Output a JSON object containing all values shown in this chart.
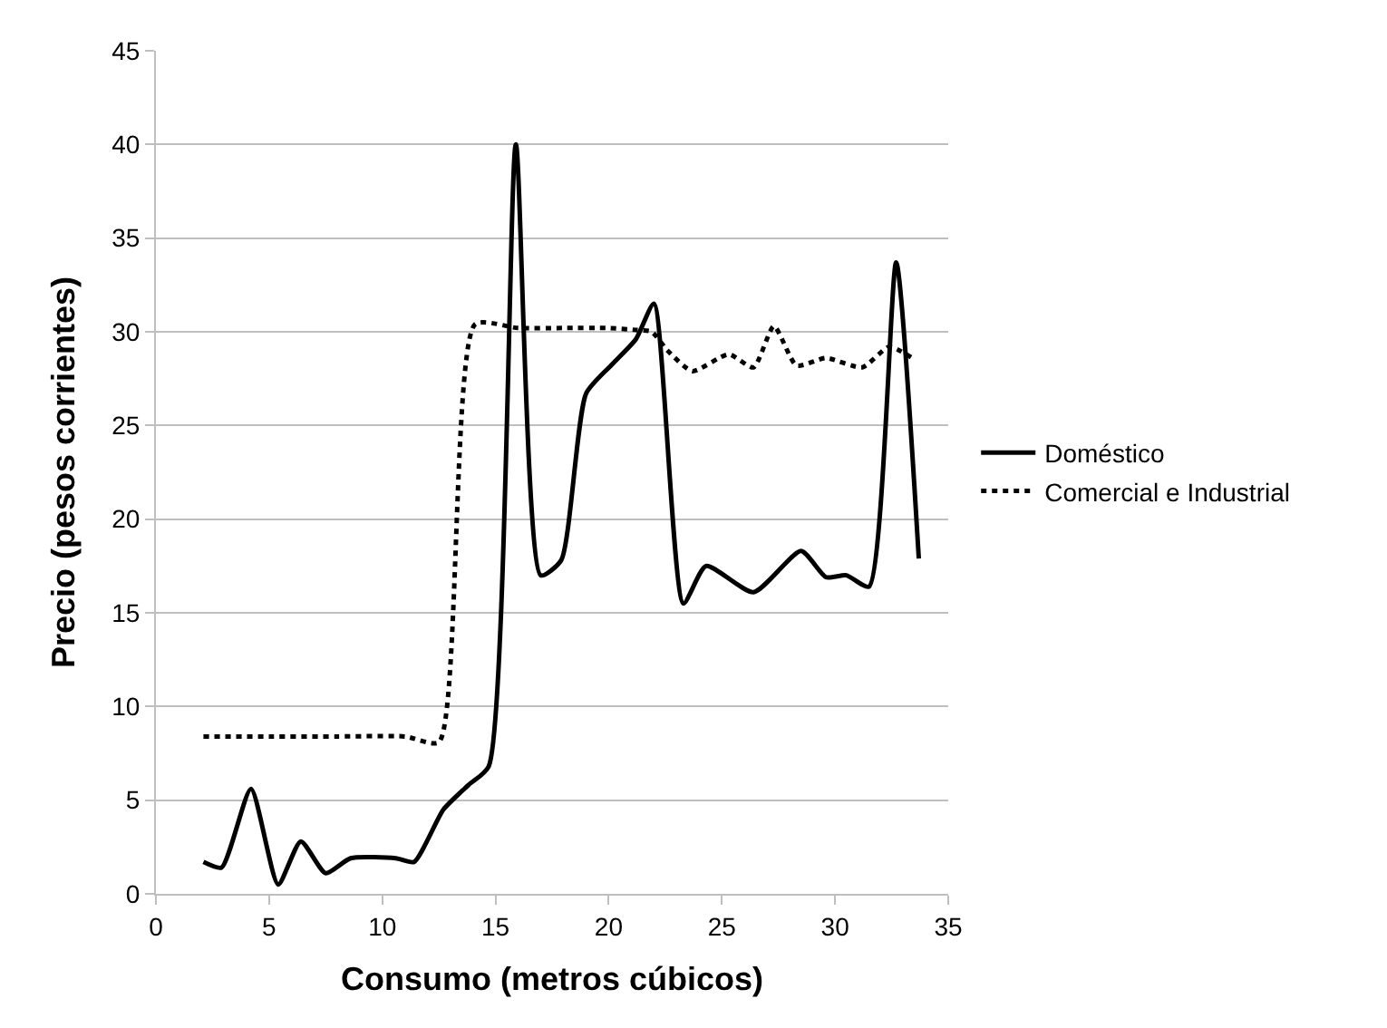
{
  "chart_data": {
    "type": "line",
    "xlabel": "Consumo (metros cúbicos)",
    "ylabel": "Precio (pesos corrientes)",
    "xlim": [
      0,
      35
    ],
    "xticks": [
      0,
      5,
      10,
      15,
      20,
      25,
      30,
      35
    ],
    "ylim": [
      0,
      45
    ],
    "yticks": [
      0,
      5,
      10,
      15,
      20,
      25,
      30,
      35,
      40,
      45
    ],
    "grid": "y",
    "legend": "right",
    "marker": "none",
    "series": [
      {
        "name": "Doméstico",
        "color": "#000000",
        "line_style": "solid",
        "x": [
          2.1,
          2.9,
          4.2,
          5.4,
          6.4,
          7.5,
          8.6,
          10.6,
          11.4,
          12.7,
          13.8,
          14.7,
          15.9,
          17.0,
          17.9,
          19.0,
          20.1,
          21.2,
          22.0,
          23.3,
          24.3,
          26.4,
          28.5,
          29.6,
          30.5,
          31.5,
          32.7,
          33.7
        ],
        "values": [
          1.7,
          1.4,
          5.6,
          0.5,
          2.8,
          1.1,
          1.9,
          1.9,
          1.7,
          4.5,
          5.8,
          6.8,
          40,
          17.0,
          17.8,
          26.7,
          28.2,
          29.6,
          31.5,
          15.5,
          17.5,
          16.1,
          18.3,
          16.9,
          17.0,
          16.4,
          33.7,
          17.9
        ]
      },
      {
        "name": "Comercial e Industrial",
        "color": "#000000",
        "line_style": "dotted",
        "x": [
          2.1,
          5,
          8,
          11,
          12.5,
          14.1,
          16,
          18,
          20,
          21.2,
          21.9,
          22.6,
          23.7,
          25.3,
          26.4,
          27.3,
          28.3,
          29.6,
          31.2,
          32.4,
          33.4
        ],
        "values": [
          8.4,
          8.4,
          8.4,
          8.4,
          8.1,
          30.4,
          30.2,
          30.2,
          30.2,
          30.1,
          30.0,
          29.0,
          27.9,
          28.8,
          28.1,
          30.3,
          28.2,
          28.6,
          28.1,
          29.2,
          28.6
        ]
      }
    ]
  }
}
